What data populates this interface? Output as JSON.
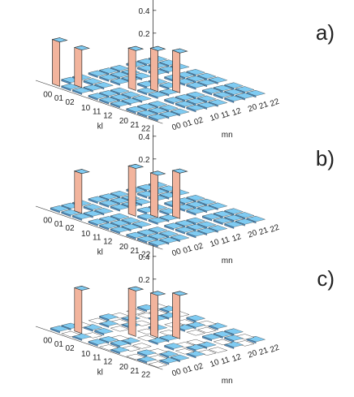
{
  "chart_data": [
    {
      "type": "bar3d",
      "panel_label": "a)",
      "kl_ticks": [
        "00",
        "01",
        "02",
        "10",
        "11",
        "12",
        "20",
        "21",
        "22"
      ],
      "mn_ticks": [
        "00",
        "01",
        "02",
        "10",
        "11",
        "12",
        "20",
        "21",
        "22"
      ],
      "xlabel": "kl",
      "ylabel": "mn",
      "z_ticks": [
        "0.2",
        "0.4"
      ],
      "zlim": [
        0,
        0.5
      ],
      "bars": [
        {
          "kl": "00",
          "mn": "00",
          "value": 0.39
        },
        {
          "kl": "01",
          "mn": "01",
          "value": 0.33
        },
        {
          "kl": "10",
          "mn": "10",
          "value": 0.35
        },
        {
          "kl": "11",
          "mn": "11",
          "value": 0.36
        },
        {
          "kl": "12",
          "mn": "12",
          "value": 0.35
        }
      ],
      "blank_cells": [],
      "colors": {
        "bar_front": "#f2b49d",
        "bar_side": "#8b62ae",
        "bar_top": "#7fcbf2",
        "tile_top": "#7fcbf2",
        "tile_side": "#4e8fc4"
      }
    },
    {
      "type": "bar3d",
      "panel_label": "b)",
      "kl_ticks": [
        "00",
        "01",
        "02",
        "10",
        "11",
        "12",
        "20",
        "21",
        "22"
      ],
      "mn_ticks": [
        "00",
        "01",
        "02",
        "10",
        "11",
        "12",
        "20",
        "21",
        "22"
      ],
      "xlabel": "kl",
      "ylabel": "mn",
      "z_ticks": [
        "0.2",
        "0.4"
      ],
      "zlim": [
        0,
        0.5
      ],
      "bars": [
        {
          "kl": "01",
          "mn": "01",
          "value": 0.35
        },
        {
          "kl": "10",
          "mn": "10",
          "value": 0.42
        },
        {
          "kl": "11",
          "mn": "11",
          "value": 0.37
        },
        {
          "kl": "12",
          "mn": "12",
          "value": 0.4
        }
      ],
      "blank_cells": [],
      "colors": {
        "bar_front": "#f2b49d",
        "bar_side": "#8b62ae",
        "bar_top": "#7fcbf2",
        "tile_top": "#7fcbf2",
        "tile_side": "#4e8fc4"
      }
    },
    {
      "type": "bar3d",
      "panel_label": "c)",
      "kl_ticks": [
        "00",
        "01",
        "02",
        "10",
        "11",
        "12",
        "20",
        "21",
        "22"
      ],
      "mn_ticks": [
        "00",
        "01",
        "02",
        "10",
        "11",
        "12",
        "20",
        "21",
        "22"
      ],
      "xlabel": "kl",
      "ylabel": "mn",
      "z_ticks": [
        "0.2",
        "0.4"
      ],
      "zlim": [
        0,
        0.5
      ],
      "bars": [
        {
          "kl": "01",
          "mn": "01",
          "value": 0.38
        },
        {
          "kl": "10",
          "mn": "10",
          "value": 0.4
        },
        {
          "kl": "11",
          "mn": "11",
          "value": 0.37
        },
        {
          "kl": "12",
          "mn": "12",
          "value": 0.38
        }
      ],
      "blank_cells": [
        "0-2",
        "0-3",
        "0-5",
        "0-6",
        "0-8",
        "1-0",
        "1-4",
        "1-6",
        "1-7",
        "2-1",
        "2-3",
        "2-5",
        "2-8",
        "3-2",
        "3-4",
        "3-6",
        "3-7",
        "4-0",
        "4-3",
        "4-5",
        "4-8",
        "5-1",
        "5-2",
        "5-6",
        "5-7",
        "6-0",
        "6-2",
        "6-4",
        "6-5",
        "7-1",
        "7-3",
        "7-6",
        "7-8",
        "8-0",
        "8-4",
        "8-5",
        "8-7"
      ],
      "colors": {
        "bar_front": "#f2b49d",
        "bar_side": "#8b62ae",
        "bar_top": "#7fcbf2",
        "tile_top": "#7fcbf2",
        "tile_side": "#4e8fc4"
      }
    }
  ]
}
